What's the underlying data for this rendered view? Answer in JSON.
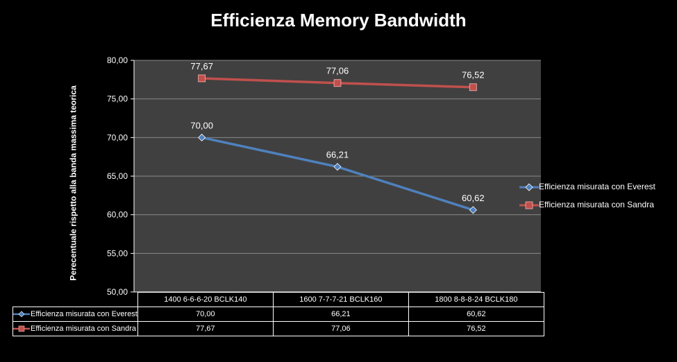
{
  "chart_data": {
    "type": "line",
    "title": "Efficienza Memory Bandwidth",
    "ylabel": "Perecentuale rispetto alla banda massima teorica",
    "xlabel": "",
    "categories": [
      "1400 6-6-6-20 BCLK140",
      "1600 7-7-7-21 BCLK160",
      "1800 8-8-8-24 BCLK180"
    ],
    "ylim": [
      50,
      80
    ],
    "yticks": [
      "50,00",
      "55,00",
      "60,00",
      "65,00",
      "70,00",
      "75,00",
      "80,00"
    ],
    "grid": true,
    "legend_position": "right",
    "series": [
      {
        "name": "Efficienza misurata con Everest",
        "values": [
          70.0,
          66.21,
          60.62
        ],
        "labels": [
          "70,00",
          "66,21",
          "60,62"
        ],
        "color": "#4f81bd",
        "marker": "diamond"
      },
      {
        "name": "Efficienza misurata con Sandra",
        "values": [
          77.67,
          77.06,
          76.52
        ],
        "labels": [
          "77,67",
          "77,06",
          "76,52"
        ],
        "color": "#c0504d",
        "marker": "square"
      }
    ]
  },
  "colors": {
    "background": "#000000",
    "plot_area": "#404040",
    "gridline": "#8a8a8a"
  }
}
